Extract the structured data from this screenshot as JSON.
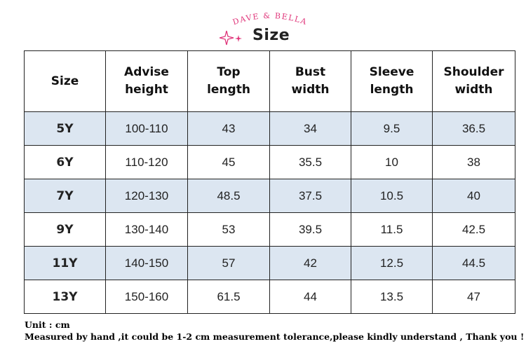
{
  "brand": {
    "logo_text": "DAVE & BELLA",
    "title": "Size",
    "sparkle_icon": "sparkle-icon",
    "accent": "#e0357a"
  },
  "table": {
    "headers": [
      [
        "Size"
      ],
      [
        "Advise",
        "height"
      ],
      [
        "Top",
        "length"
      ],
      [
        "Bust",
        "width"
      ],
      [
        "Sleeve",
        "length"
      ],
      [
        "Shoulder",
        "width"
      ]
    ],
    "rows": [
      [
        "5Y",
        "100-110",
        "43",
        "34",
        "9.5",
        "36.5"
      ],
      [
        "6Y",
        "110-120",
        "45",
        "35.5",
        "10",
        "38"
      ],
      [
        "7Y",
        "120-130",
        "48.5",
        "37.5",
        "10.5",
        "40"
      ],
      [
        "9Y",
        "130-140",
        "53",
        "39.5",
        "11.5",
        "42.5"
      ],
      [
        "11Y",
        "140-150",
        "57",
        "42",
        "12.5",
        "44.5"
      ],
      [
        "13Y",
        "150-160",
        "61.5",
        "44",
        "13.5",
        "47"
      ]
    ],
    "shade_color": "#dce6f1"
  },
  "notes": {
    "unit": "Unit : cm",
    "disclaimer": "Measured by hand ,it could be 1-2 cm measurement tolerance,please kindly understand , Thank you !"
  }
}
